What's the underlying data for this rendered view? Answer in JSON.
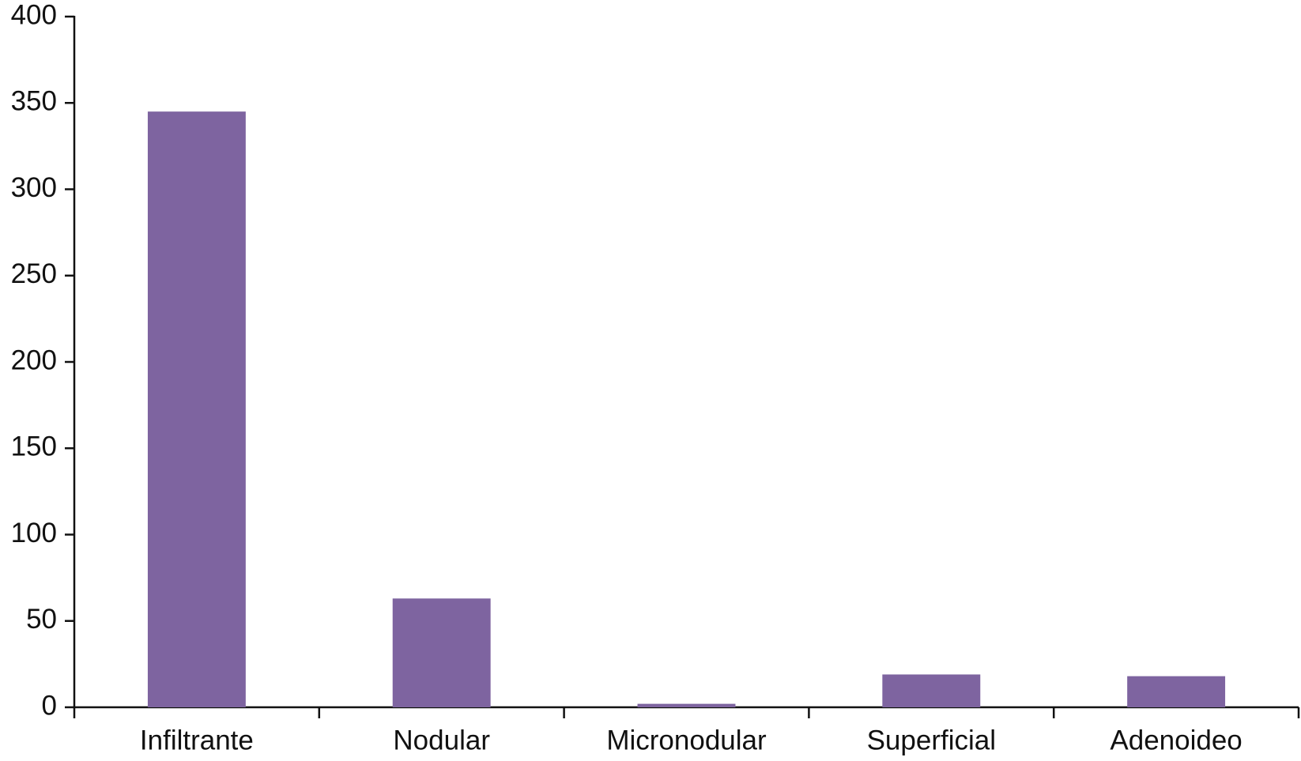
{
  "chart_data": {
    "type": "bar",
    "categories": [
      "Infiltrante",
      "Nodular",
      "Micronodular",
      "Superficial",
      "Adenoideo"
    ],
    "values": [
      345,
      63,
      2,
      19,
      18
    ],
    "color": "#7e64a0",
    "ylim": [
      0,
      400
    ],
    "yticks": [
      0,
      50,
      100,
      150,
      200,
      250,
      300,
      350,
      400
    ],
    "grid": false
  }
}
